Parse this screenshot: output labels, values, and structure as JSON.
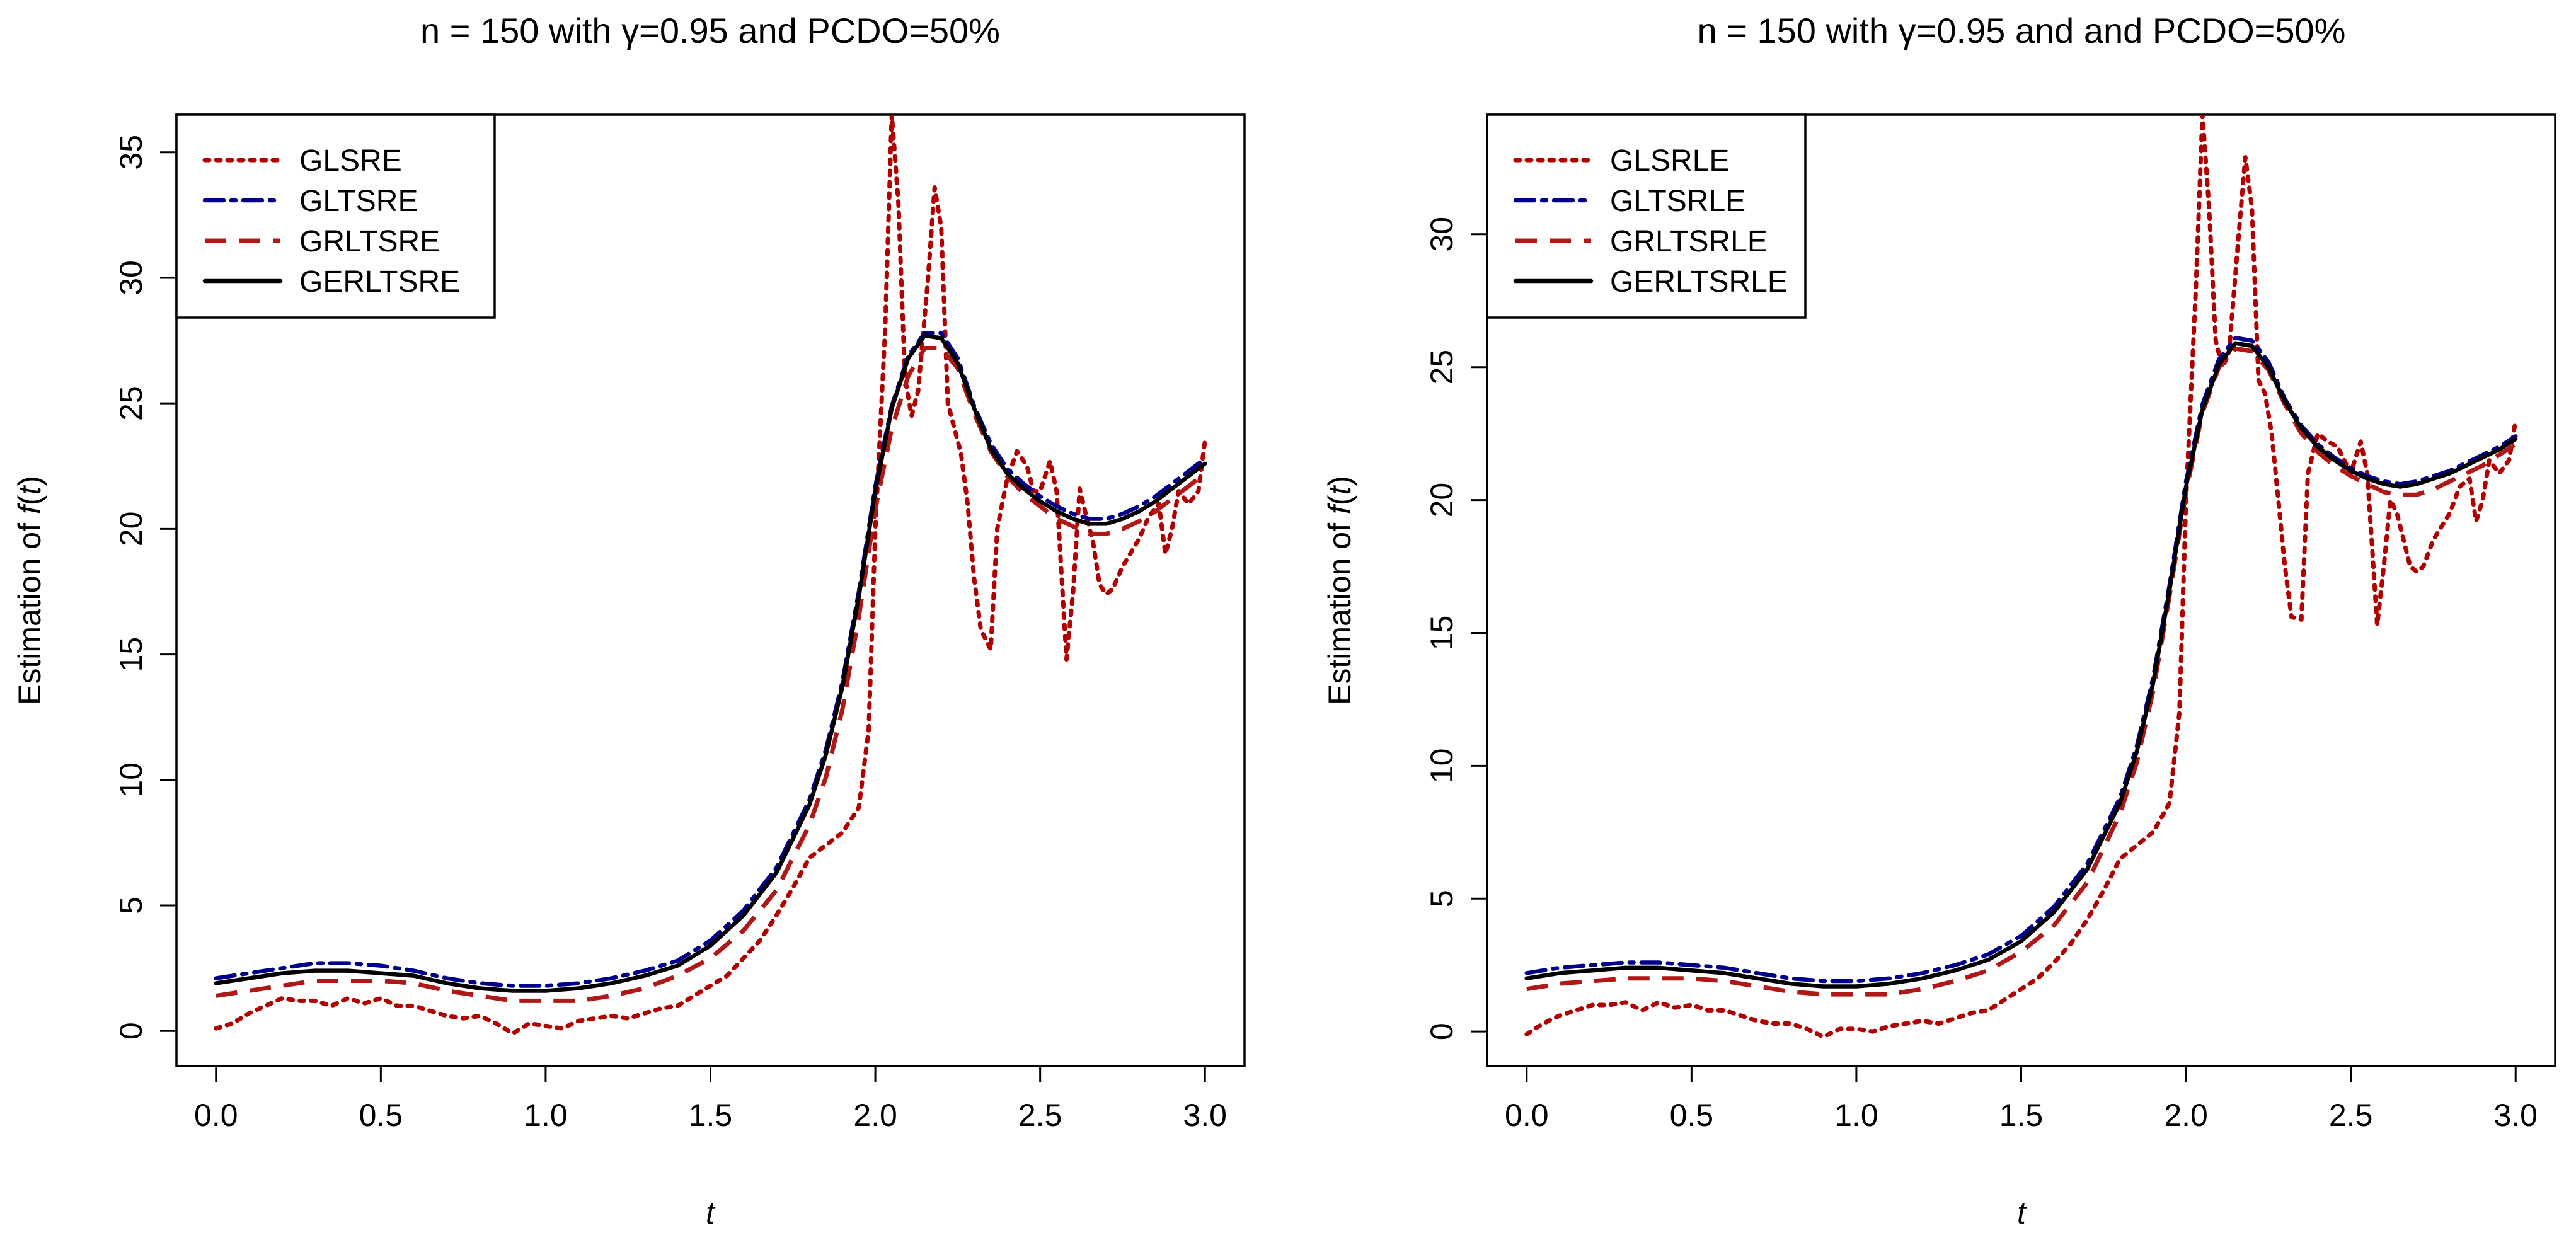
{
  "colors": {
    "dotted": "#b00000",
    "dotdash": "#00008b",
    "dashed": "#b01818",
    "solid": "#000000"
  },
  "chart_data": [
    {
      "type": "line",
      "title": "n = 150  with  γ=0.95  and  PCDO=50%",
      "xlabel": "t",
      "ylabel": "Estimation of f(t)",
      "ylabel_parts": {
        "prefix": "Estimation  of  ",
        "func": "f",
        "open": "(",
        "var": "t",
        "close": ")"
      },
      "xlim": [
        -0.12,
        3.12
      ],
      "ylim": [
        -1.4,
        36.5
      ],
      "xticks": [
        0,
        0.5,
        1,
        1.5,
        2,
        2.5,
        3
      ],
      "xtick_labels": [
        "0.0",
        "0.5",
        "1.0",
        "1.5",
        "2.0",
        "2.5",
        "3.0"
      ],
      "yticks": [
        0,
        5,
        10,
        15,
        20,
        25,
        30,
        35
      ],
      "ytick_labels": [
        "0",
        "5",
        "10",
        "15",
        "20",
        "25",
        "30",
        "35"
      ],
      "legend": "top-left",
      "series": [
        {
          "name": "GLSRE",
          "style": "dotted",
          "x": [
            0,
            0.05,
            0.1,
            0.15,
            0.2,
            0.25,
            0.3,
            0.35,
            0.4,
            0.45,
            0.5,
            0.55,
            0.6,
            0.65,
            0.7,
            0.75,
            0.8,
            0.85,
            0.9,
            0.95,
            1.0,
            1.05,
            1.1,
            1.15,
            1.2,
            1.25,
            1.3,
            1.35,
            1.4,
            1.45,
            1.5,
            1.55,
            1.6,
            1.65,
            1.7,
            1.75,
            1.8,
            1.85,
            1.9,
            1.95,
            1.98,
            2.0,
            2.03,
            2.05,
            2.07,
            2.09,
            2.11,
            2.13,
            2.16,
            2.18,
            2.2,
            2.22,
            2.24,
            2.26,
            2.28,
            2.3,
            2.32,
            2.35,
            2.37,
            2.4,
            2.43,
            2.46,
            2.48,
            2.5,
            2.53,
            2.55,
            2.58,
            2.6,
            2.62,
            2.64,
            2.66,
            2.68,
            2.7,
            2.72,
            2.75,
            2.8,
            2.83,
            2.86,
            2.88,
            2.9,
            2.92,
            2.95,
            2.98,
            3.0
          ],
          "y": [
            0.1,
            0.3,
            0.7,
            1.0,
            1.3,
            1.2,
            1.2,
            1.0,
            1.3,
            1.1,
            1.3,
            1.0,
            1.0,
            0.8,
            0.6,
            0.5,
            0.6,
            0.3,
            -0.1,
            0.3,
            0.2,
            0.1,
            0.4,
            0.5,
            0.6,
            0.5,
            0.7,
            0.9,
            1.0,
            1.4,
            1.8,
            2.2,
            2.9,
            3.6,
            4.6,
            5.7,
            6.9,
            7.4,
            7.9,
            8.9,
            12.0,
            20.0,
            28.0,
            36.5,
            33.0,
            26.0,
            24.5,
            25.5,
            30.0,
            33.6,
            32.0,
            25.0,
            24.0,
            23.0,
            21.0,
            18.0,
            16.0,
            15.2,
            20.0,
            22.0,
            23.1,
            22.5,
            21.5,
            21.5,
            22.7,
            21.5,
            14.8,
            17.5,
            21.6,
            20.5,
            19.5,
            17.8,
            17.4,
            17.6,
            18.5,
            19.6,
            20.5,
            21.0,
            19.0,
            20.0,
            21.5,
            21.0,
            21.5,
            23.5
          ]
        },
        {
          "name": "GLTSRE",
          "style": "dotdash",
          "x": [
            0,
            0.1,
            0.2,
            0.3,
            0.4,
            0.5,
            0.6,
            0.7,
            0.8,
            0.9,
            1.0,
            1.1,
            1.2,
            1.3,
            1.4,
            1.5,
            1.6,
            1.7,
            1.8,
            1.85,
            1.9,
            1.95,
            2.0,
            2.05,
            2.1,
            2.15,
            2.2,
            2.25,
            2.3,
            2.35,
            2.4,
            2.45,
            2.5,
            2.55,
            2.6,
            2.65,
            2.7,
            2.75,
            2.8,
            2.85,
            2.9,
            2.95,
            3.0
          ],
          "y": [
            2.1,
            2.3,
            2.5,
            2.7,
            2.7,
            2.6,
            2.4,
            2.1,
            1.9,
            1.8,
            1.8,
            1.9,
            2.1,
            2.4,
            2.8,
            3.6,
            4.8,
            6.5,
            9.2,
            11.2,
            13.9,
            17.5,
            21.7,
            24.9,
            26.9,
            27.8,
            27.8,
            26.8,
            24.9,
            23.4,
            22.4,
            21.8,
            21.3,
            20.9,
            20.6,
            20.4,
            20.4,
            20.6,
            20.9,
            21.3,
            21.8,
            22.3,
            22.8
          ]
        },
        {
          "name": "GRLTSRE",
          "style": "dashed",
          "x": [
            0,
            0.1,
            0.2,
            0.3,
            0.4,
            0.5,
            0.6,
            0.7,
            0.8,
            0.9,
            1.0,
            1.1,
            1.2,
            1.3,
            1.4,
            1.5,
            1.6,
            1.7,
            1.8,
            1.85,
            1.9,
            1.95,
            2.0,
            2.05,
            2.1,
            2.15,
            2.2,
            2.25,
            2.3,
            2.35,
            2.4,
            2.45,
            2.5,
            2.55,
            2.6,
            2.65,
            2.7,
            2.75,
            2.8,
            2.85,
            2.9,
            2.95,
            3.0
          ],
          "y": [
            1.4,
            1.6,
            1.8,
            2.0,
            2.0,
            2.0,
            1.9,
            1.6,
            1.4,
            1.2,
            1.2,
            1.2,
            1.4,
            1.7,
            2.2,
            2.9,
            4.0,
            5.6,
            8.2,
            10.1,
            12.8,
            16.5,
            20.8,
            24.0,
            26.1,
            27.2,
            27.2,
            26.4,
            24.6,
            23.1,
            22.1,
            21.4,
            20.9,
            20.4,
            20.1,
            19.8,
            19.8,
            20.0,
            20.3,
            20.7,
            21.2,
            21.7,
            22.2
          ]
        },
        {
          "name": "GERLTSRE",
          "style": "solid",
          "x": [
            0,
            0.1,
            0.2,
            0.3,
            0.4,
            0.5,
            0.6,
            0.7,
            0.8,
            0.9,
            1.0,
            1.1,
            1.2,
            1.3,
            1.4,
            1.5,
            1.6,
            1.7,
            1.8,
            1.85,
            1.9,
            1.95,
            2.0,
            2.05,
            2.1,
            2.15,
            2.2,
            2.25,
            2.3,
            2.35,
            2.4,
            2.45,
            2.5,
            2.55,
            2.6,
            2.65,
            2.7,
            2.75,
            2.8,
            2.85,
            2.9,
            2.95,
            3.0
          ],
          "y": [
            1.9,
            2.1,
            2.3,
            2.4,
            2.4,
            2.3,
            2.2,
            1.9,
            1.7,
            1.6,
            1.6,
            1.7,
            1.9,
            2.2,
            2.6,
            3.4,
            4.6,
            6.3,
            9.0,
            11.0,
            13.7,
            17.3,
            21.5,
            24.8,
            26.8,
            27.7,
            27.6,
            26.6,
            24.8,
            23.2,
            22.2,
            21.6,
            21.1,
            20.7,
            20.4,
            20.2,
            20.2,
            20.4,
            20.7,
            21.1,
            21.6,
            22.1,
            22.6
          ]
        }
      ]
    },
    {
      "type": "line",
      "title": "n = 150  with  γ=0.95  and  and  PCDO=50%",
      "xlabel": "t",
      "ylabel": "Estimation of f(t)",
      "ylabel_parts": {
        "prefix": "Estimation  of  ",
        "func": "f",
        "open": "(",
        "var": "t",
        "close": ")"
      },
      "xlim": [
        -0.12,
        3.12
      ],
      "ylim": [
        -1.3,
        34.5
      ],
      "xticks": [
        0,
        0.5,
        1,
        1.5,
        2,
        2.5,
        3
      ],
      "xtick_labels": [
        "0.0",
        "0.5",
        "1.0",
        "1.5",
        "2.0",
        "2.5",
        "3.0"
      ],
      "yticks": [
        0,
        5,
        10,
        15,
        20,
        25,
        30
      ],
      "ytick_labels": [
        "0",
        "5",
        "10",
        "15",
        "20",
        "25",
        "30"
      ],
      "legend": "top-left",
      "series": [
        {
          "name": "GLSRLE",
          "style": "dotted",
          "x": [
            0,
            0.05,
            0.1,
            0.15,
            0.2,
            0.25,
            0.3,
            0.35,
            0.4,
            0.45,
            0.5,
            0.55,
            0.6,
            0.65,
            0.7,
            0.75,
            0.8,
            0.85,
            0.9,
            0.95,
            1.0,
            1.05,
            1.1,
            1.15,
            1.2,
            1.25,
            1.3,
            1.35,
            1.4,
            1.45,
            1.5,
            1.55,
            1.6,
            1.65,
            1.7,
            1.75,
            1.8,
            1.85,
            1.9,
            1.95,
            1.98,
            2.0,
            2.03,
            2.05,
            2.07,
            2.09,
            2.11,
            2.13,
            2.16,
            2.18,
            2.2,
            2.22,
            2.24,
            2.26,
            2.28,
            2.3,
            2.32,
            2.35,
            2.37,
            2.4,
            2.43,
            2.46,
            2.48,
            2.5,
            2.53,
            2.55,
            2.58,
            2.6,
            2.62,
            2.64,
            2.66,
            2.68,
            2.7,
            2.72,
            2.75,
            2.8,
            2.83,
            2.86,
            2.88,
            2.9,
            2.92,
            2.95,
            2.98,
            3.0
          ],
          "y": [
            -0.1,
            0.3,
            0.6,
            0.8,
            1.0,
            1.0,
            1.1,
            0.8,
            1.1,
            0.9,
            1.0,
            0.8,
            0.8,
            0.6,
            0.4,
            0.3,
            0.3,
            0.1,
            -0.2,
            0.1,
            0.1,
            0.0,
            0.2,
            0.3,
            0.4,
            0.3,
            0.5,
            0.7,
            0.8,
            1.2,
            1.6,
            2.0,
            2.6,
            3.3,
            4.2,
            5.3,
            6.5,
            7.0,
            7.5,
            8.6,
            12.0,
            20.0,
            28.0,
            34.5,
            31.0,
            26.0,
            25.0,
            25.5,
            30.0,
            32.9,
            31.0,
            24.5,
            24.0,
            22.5,
            20.0,
            17.5,
            15.6,
            15.5,
            21.0,
            22.5,
            22.2,
            22.0,
            21.5,
            21.0,
            22.2,
            21.0,
            15.3,
            17.5,
            20.0,
            19.5,
            18.5,
            17.5,
            17.3,
            17.5,
            18.5,
            19.5,
            20.5,
            20.8,
            19.2,
            20.0,
            21.5,
            21.0,
            21.5,
            23.0
          ]
        },
        {
          "name": "GLTSRLE",
          "style": "dotdash",
          "x": [
            0,
            0.1,
            0.2,
            0.3,
            0.4,
            0.5,
            0.6,
            0.7,
            0.8,
            0.9,
            1.0,
            1.1,
            1.2,
            1.3,
            1.4,
            1.5,
            1.6,
            1.7,
            1.8,
            1.85,
            1.9,
            1.95,
            2.0,
            2.05,
            2.1,
            2.15,
            2.2,
            2.25,
            2.3,
            2.35,
            2.4,
            2.45,
            2.5,
            2.55,
            2.6,
            2.65,
            2.7,
            2.75,
            2.8,
            2.85,
            2.9,
            2.95,
            3.0
          ],
          "y": [
            2.2,
            2.4,
            2.5,
            2.6,
            2.6,
            2.5,
            2.4,
            2.2,
            2.0,
            1.9,
            1.9,
            2.0,
            2.2,
            2.5,
            2.9,
            3.6,
            4.7,
            6.3,
            8.8,
            10.7,
            13.3,
            16.8,
            20.7,
            23.6,
            25.3,
            26.1,
            26.0,
            25.2,
            23.8,
            22.8,
            22.1,
            21.6,
            21.2,
            20.9,
            20.7,
            20.6,
            20.7,
            20.9,
            21.1,
            21.4,
            21.7,
            22.0,
            22.4
          ]
        },
        {
          "name": "GRLTSRLE",
          "style": "dashed",
          "x": [
            0,
            0.1,
            0.2,
            0.3,
            0.4,
            0.5,
            0.6,
            0.7,
            0.8,
            0.9,
            1.0,
            1.1,
            1.2,
            1.3,
            1.4,
            1.5,
            1.6,
            1.7,
            1.8,
            1.85,
            1.9,
            1.95,
            2.0,
            2.05,
            2.1,
            2.15,
            2.2,
            2.25,
            2.3,
            2.35,
            2.4,
            2.45,
            2.5,
            2.55,
            2.6,
            2.65,
            2.7,
            2.75,
            2.8,
            2.85,
            2.9,
            2.95,
            3.0
          ],
          "y": [
            1.6,
            1.8,
            1.9,
            2.0,
            2.0,
            2.0,
            1.9,
            1.7,
            1.5,
            1.4,
            1.4,
            1.4,
            1.6,
            1.9,
            2.3,
            3.0,
            4.0,
            5.6,
            8.2,
            10.1,
            12.8,
            16.4,
            20.3,
            23.3,
            25.0,
            25.7,
            25.6,
            24.9,
            23.6,
            22.5,
            21.8,
            21.3,
            20.9,
            20.6,
            20.3,
            20.2,
            20.2,
            20.4,
            20.7,
            21.0,
            21.3,
            21.7,
            22.1
          ]
        },
        {
          "name": "GERLTSRLE",
          "style": "solid",
          "x": [
            0,
            0.1,
            0.2,
            0.3,
            0.4,
            0.5,
            0.6,
            0.7,
            0.8,
            0.9,
            1.0,
            1.1,
            1.2,
            1.3,
            1.4,
            1.5,
            1.6,
            1.7,
            1.8,
            1.85,
            1.9,
            1.95,
            2.0,
            2.05,
            2.1,
            2.15,
            2.2,
            2.25,
            2.3,
            2.35,
            2.4,
            2.45,
            2.5,
            2.55,
            2.6,
            2.65,
            2.7,
            2.75,
            2.8,
            2.85,
            2.9,
            2.95,
            3.0
          ],
          "y": [
            2.0,
            2.2,
            2.3,
            2.4,
            2.4,
            2.3,
            2.2,
            2.0,
            1.8,
            1.7,
            1.7,
            1.8,
            2.0,
            2.3,
            2.7,
            3.4,
            4.5,
            6.1,
            8.6,
            10.5,
            13.1,
            16.6,
            20.5,
            23.4,
            25.1,
            25.9,
            25.8,
            25.0,
            23.7,
            22.7,
            22.0,
            21.5,
            21.1,
            20.8,
            20.6,
            20.5,
            20.6,
            20.8,
            21.0,
            21.3,
            21.6,
            21.9,
            22.3
          ]
        }
      ]
    }
  ]
}
